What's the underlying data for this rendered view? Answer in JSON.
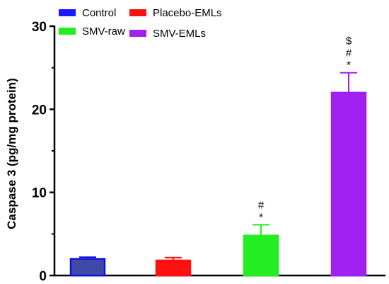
{
  "chart_data": {
    "type": "bar",
    "categories": [
      "Control",
      "Placebo-EMLs",
      "SMV-raw",
      "SMV-EMLs"
    ],
    "values": [
      2.0,
      1.8,
      4.8,
      22.0
    ],
    "errors": [
      0.2,
      0.35,
      1.3,
      2.4
    ],
    "ylabel": "Caspase 3 (pg/mg protein)",
    "xlabel": "",
    "ylim": [
      0,
      30
    ],
    "yticks": [
      "0",
      "10",
      "20",
      "30"
    ],
    "legend": {
      "placement": "top",
      "items": [
        "Control",
        "Placebo-EMLs",
        "SMV-raw",
        "SMV-EMLs"
      ]
    },
    "significance": [
      [],
      [],
      [
        "#",
        "*"
      ],
      [
        "$",
        "#",
        "*"
      ]
    ],
    "colors": {
      "fill": [
        "#3f4aa6",
        "#ff1111",
        "#22ee22",
        "#a020f0"
      ],
      "stroke": [
        "#1010e0",
        "#ff1111",
        "#22ee22",
        "#a020f0"
      ],
      "legend": [
        "#1a1aff",
        "#ff1111",
        "#22ee22",
        "#a020f0"
      ]
    },
    "grid": false
  }
}
